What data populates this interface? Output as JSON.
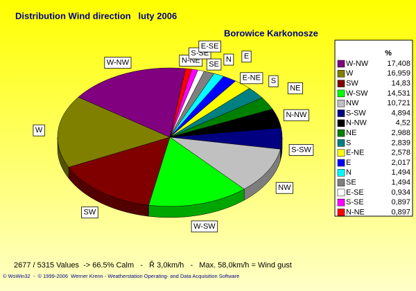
{
  "chart_data": {
    "type": "pie",
    "title": "Distribution Wind direction   luty 2006",
    "subtitle": "Borowice Karkonosze",
    "legend_header": "%",
    "categories": [
      "W-NW",
      "W",
      "SW",
      "W-SW",
      "NW",
      "S-SW",
      "N-NW",
      "NE",
      "S",
      "E-NE",
      "E",
      "N",
      "SE",
      "E-SE",
      "S-SE",
      "N-NE"
    ],
    "values": [
      17.408,
      16.959,
      14.83,
      14.531,
      10.721,
      4.894,
      4.52,
      2.988,
      2.839,
      2.578,
      2.017,
      1.494,
      1.494,
      0.934,
      0.897,
      0.897
    ],
    "value_labels": [
      "17,408",
      "16,959",
      "14,83",
      "14,531",
      "10,721",
      "4,894",
      "4,52",
      "2,988",
      "2,839",
      "2,578",
      "2,017",
      "1,494",
      "1,494",
      "0,934",
      "0,897",
      "0,897"
    ],
    "colors": [
      "#800080",
      "#808000",
      "#800000",
      "#00ff00",
      "#c0c0c0",
      "#000080",
      "#000000",
      "#008000",
      "#008080",
      "#ffff00",
      "#0000ff",
      "#00ffff",
      "#808080",
      "#ffffff",
      "#ff00ff",
      "#ff0000"
    ],
    "footer": "2677 / 5315 Values  -> 66.5% Calm   -   Ř 3,0km/h   -   Max. 58,0km/h = Wind gust",
    "copyright": "© WsWin32  -  © 1999-2006  Werner Krenn - Weatherstation Operating- and Data Acquisition Software"
  }
}
